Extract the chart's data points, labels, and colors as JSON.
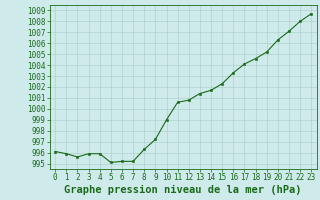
{
  "x": [
    0,
    1,
    2,
    3,
    4,
    5,
    6,
    7,
    8,
    9,
    10,
    11,
    12,
    13,
    14,
    15,
    16,
    17,
    18,
    19,
    20,
    21,
    22,
    23
  ],
  "y": [
    996.1,
    995.9,
    995.6,
    995.9,
    995.9,
    995.1,
    995.2,
    995.2,
    996.3,
    997.2,
    999.0,
    1000.6,
    1000.8,
    1001.4,
    1001.7,
    1002.3,
    1003.3,
    1004.1,
    1004.6,
    1005.2,
    1006.3,
    1007.1,
    1008.0,
    1008.7
  ],
  "ylim": [
    994.5,
    1009.5
  ],
  "yticks": [
    995,
    996,
    997,
    998,
    999,
    1000,
    1001,
    1002,
    1003,
    1004,
    1005,
    1006,
    1007,
    1008,
    1009
  ],
  "xlim": [
    -0.5,
    23.5
  ],
  "xticks": [
    0,
    1,
    2,
    3,
    4,
    5,
    6,
    7,
    8,
    9,
    10,
    11,
    12,
    13,
    14,
    15,
    16,
    17,
    18,
    19,
    20,
    21,
    22,
    23
  ],
  "line_color": "#1a6b1a",
  "marker_color": "#1a6b1a",
  "bg_color": "#ceeaea",
  "grid_color": "#aacccc",
  "xlabel": "Graphe pression niveau de la mer (hPa)",
  "tick_fontsize": 5.5,
  "label_fontsize": 7.5
}
